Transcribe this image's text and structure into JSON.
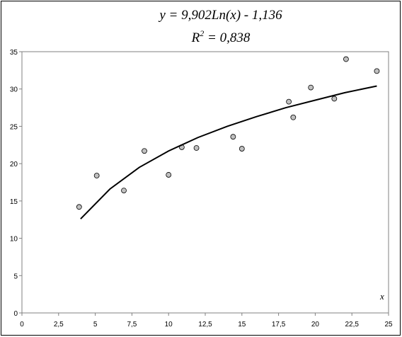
{
  "chart_data": {
    "type": "scatter",
    "title": "y = 9,902Ln(x) - 1,136",
    "subtitle": {
      "base": "R",
      "sup": "2",
      "rest": " = 0,838"
    },
    "x_label": "x",
    "xlim": [
      0,
      25
    ],
    "xticks": [
      0,
      {
        "value": 2.5,
        "label": "2,5"
      },
      5,
      {
        "value": 7.5,
        "label": "7,5"
      },
      10,
      {
        "value": 12.5,
        "label": "12,5"
      },
      15,
      {
        "value": 17.5,
        "label": "17,5"
      },
      20,
      {
        "value": 22.5,
        "label": "22,5"
      },
      25
    ],
    "ylim": [
      0,
      35
    ],
    "yticks": [
      0,
      5,
      10,
      15,
      20,
      25,
      30,
      35
    ],
    "grid": false,
    "series": [
      {
        "type": "scatter",
        "color": "#c0c0c0",
        "x": [
          3.9,
          5.1,
          6.95,
          8.35,
          10.0,
          10.9,
          11.9,
          14.4,
          15.0,
          18.2,
          18.5,
          19.7,
          21.3,
          22.1,
          24.2
        ],
        "values": [
          14.2,
          18.4,
          16.4,
          21.7,
          18.5,
          22.2,
          22.1,
          23.6,
          22.0,
          28.3,
          26.2,
          30.2,
          28.7,
          34.0,
          32.4
        ]
      },
      {
        "type": "line",
        "color": "#000000",
        "x": [
          4,
          6,
          8,
          10,
          12,
          14,
          16,
          18,
          20,
          22,
          24.2
        ],
        "values": [
          12.6,
          16.6,
          19.5,
          21.7,
          23.5,
          25.0,
          26.3,
          27.5,
          28.5,
          29.5,
          30.4
        ]
      }
    ]
  }
}
